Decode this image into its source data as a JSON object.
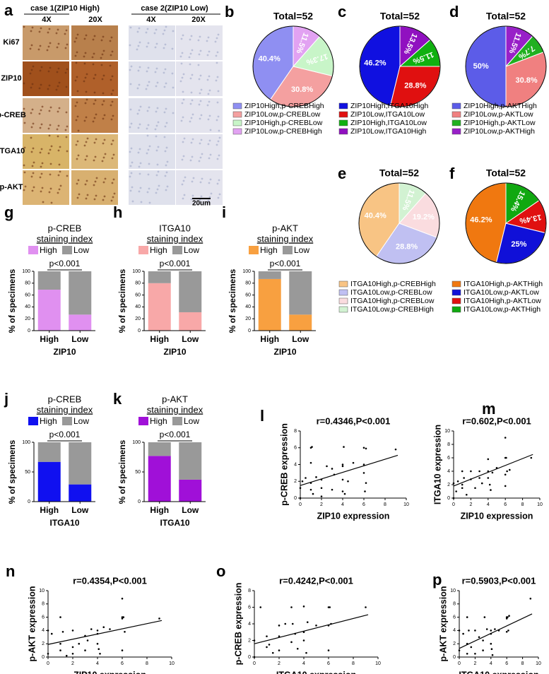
{
  "panel_a": {
    "label": "a",
    "case1": "case 1(ZIP10 High)",
    "case2": "case 2(ZIP10 Low)",
    "magnifications": [
      "4X",
      "20X"
    ],
    "rows": [
      "Ki67",
      "ZIP10",
      "p-CREB",
      "ITGA10",
      "p-AKT"
    ],
    "scale_bar": "20um"
  },
  "chart_data": [
    {
      "type": "pie",
      "label": "b",
      "title": "Total=52",
      "categories": [
        "ZIP10High,p-CREBHigh",
        "ZIP10Low,p-CREBLow",
        "ZIP10High,p-CREBLow",
        "ZIP10Low,p-CREBHigh"
      ],
      "values": [
        40.4,
        30.8,
        17.3,
        11.5
      ],
      "value_labels": [
        "40.4%",
        "30.8%",
        "17.3%",
        "11.5%"
      ],
      "colors": [
        "#8f8ff2",
        "#f4a0a0",
        "#c8f5c8",
        "#e2a2f2"
      ]
    },
    {
      "type": "pie",
      "label": "c",
      "title": "Total=52",
      "categories": [
        "ZIP10High,ITGA10High",
        "ZIP10Low,ITGA10Low",
        "ZIP10High,ITGA10Low",
        "ZIP10Low,ITGA10High"
      ],
      "values": [
        46.2,
        28.8,
        11.5,
        13.5
      ],
      "value_labels": [
        "46.2%",
        "28.8%",
        "11.5%",
        "13.5%"
      ],
      "colors": [
        "#1010e0",
        "#e01010",
        "#10b010",
        "#9010c0"
      ]
    },
    {
      "type": "pie",
      "label": "d",
      "title": "Total=52",
      "categories": [
        "ZIP10High,p-AKTHigh",
        "ZIP10Low,p-AKTLow",
        "ZIP10High,p-AKTLow",
        "ZIP10Low,p-AKTHigh"
      ],
      "values": [
        50,
        30.8,
        7.7,
        11.5
      ],
      "value_labels": [
        "50%",
        "30.8%",
        "7.7%",
        "11.5%"
      ],
      "colors": [
        "#5c5ce8",
        "#f08080",
        "#20b020",
        "#9820c8"
      ]
    },
    {
      "type": "pie",
      "label": "e",
      "title": "Total=52",
      "categories": [
        "ITGA10High,p-CREBHigh",
        "ITGA10Low,p-CREBLow",
        "ITGA10High,p-CREBLow",
        "ITGA10Low,p-CREBHigh"
      ],
      "values": [
        40.4,
        28.8,
        19.2,
        11.5
      ],
      "value_labels": [
        "40.4%",
        "28.8%",
        "19.2%",
        "11.5%"
      ],
      "colors": [
        "#f8c484",
        "#c0c0f2",
        "#fadcdf",
        "#d2f2d2"
      ]
    },
    {
      "type": "pie",
      "label": "f",
      "title": "Total=52",
      "categories": [
        "ITGA10High,p-AKTHigh",
        "ITGA10Low,p-AKTLow",
        "ITGA10High,p-AKTLow",
        "ITGA10Low,p-AKTHigh"
      ],
      "values": [
        46.2,
        25,
        13.4,
        15.4
      ],
      "value_labels": [
        "46.2%",
        "25%",
        "13.4%",
        "15.4%"
      ],
      "colors": [
        "#f07810",
        "#1010d8",
        "#e01010",
        "#10a810"
      ]
    },
    {
      "type": "bar",
      "stacked": true,
      "label": "g",
      "title": "p-CREB",
      "subtitle": "staining index",
      "annotation": "p<0.001",
      "ylabel": "% of specimens",
      "xlabel": "ZIP10",
      "categories": [
        "High",
        "Low"
      ],
      "series": [
        {
          "name": "High",
          "color": "#e090f0",
          "values": [
            69,
            27
          ]
        },
        {
          "name": "Low",
          "color": "#999999",
          "values": [
            31,
            73
          ]
        }
      ],
      "ylim": [
        0,
        100
      ],
      "yticks": [
        0,
        20,
        40,
        60,
        80,
        100
      ]
    },
    {
      "type": "bar",
      "stacked": true,
      "label": "h",
      "title": "ITGA10",
      "subtitle": "staining index",
      "annotation": "p<0.001",
      "ylabel": "% of specimens",
      "xlabel": "ZIP10",
      "categories": [
        "High",
        "Low"
      ],
      "series": [
        {
          "name": "High",
          "color": "#f8a8a8",
          "values": [
            80,
            31
          ]
        },
        {
          "name": "Low",
          "color": "#999999",
          "values": [
            20,
            69
          ]
        }
      ],
      "ylim": [
        0,
        100
      ],
      "yticks": [
        0,
        20,
        40,
        60,
        80,
        100
      ]
    },
    {
      "type": "bar",
      "stacked": true,
      "label": "i",
      "title": "p-AKT",
      "subtitle": "staining index",
      "annotation": "p<0.001",
      "ylabel": "% of specimens",
      "xlabel": "ZIP10",
      "categories": [
        "High",
        "Low"
      ],
      "series": [
        {
          "name": "High",
          "color": "#f8a040",
          "values": [
            87,
            27
          ]
        },
        {
          "name": "Low",
          "color": "#999999",
          "values": [
            13,
            73
          ]
        }
      ],
      "ylim": [
        0,
        100
      ],
      "yticks": [
        0,
        20,
        40,
        60,
        80,
        100
      ]
    },
    {
      "type": "bar",
      "stacked": true,
      "label": "j",
      "title": "p-CREB",
      "subtitle": "staining index",
      "annotation": "p<0.001",
      "ylabel": "% of specimens",
      "xlabel": "ITGA10",
      "categories": [
        "High",
        "Low"
      ],
      "series": [
        {
          "name": "High",
          "color": "#1010f0",
          "values": [
            67,
            29
          ]
        },
        {
          "name": "Low",
          "color": "#999999",
          "values": [
            33,
            71
          ]
        }
      ],
      "ylim": [
        0,
        100
      ],
      "yticks": [
        0,
        50,
        100
      ]
    },
    {
      "type": "bar",
      "stacked": true,
      "label": "k",
      "title": "p-AKT",
      "subtitle": "staining index",
      "annotation": "p<0.001",
      "ylabel": "% of specimens",
      "xlabel": "ITGA10",
      "categories": [
        "High",
        "Low"
      ],
      "series": [
        {
          "name": "High",
          "color": "#a010d8",
          "values": [
            77,
            37
          ]
        },
        {
          "name": "Low",
          "color": "#999999",
          "values": [
            23,
            63
          ]
        }
      ],
      "ylim": [
        0,
        100
      ],
      "yticks": [
        0,
        50,
        100
      ]
    },
    {
      "type": "scatter",
      "label": "l",
      "title": "r=0.4346,P<0.001",
      "xlabel": "ZIP10 expression",
      "ylabel": "p-CREB expression",
      "x": [
        0,
        0,
        0.2,
        0.5,
        1,
        1,
        1.1,
        1,
        1,
        1.2,
        1.5,
        2,
        2,
        2,
        2.5,
        3,
        3,
        3.2,
        4,
        4,
        4.1,
        4,
        4.2,
        4,
        4.5,
        5,
        6,
        6.2,
        6,
        6,
        6.2,
        6.1,
        9
      ],
      "values": [
        0,
        1.2,
        2,
        2.4,
        4.2,
        6,
        6.1,
        1,
        1.8,
        0.5,
        2.5,
        2.2,
        1.2,
        0.2,
        3.8,
        3.5,
        1,
        2.8,
        3.8,
        4,
        6.1,
        0.8,
        0.5,
        2.2,
        2,
        4.2,
        6,
        5.9,
        3,
        4,
        1.8,
        0.8,
        5.8
      ],
      "fit": {
        "x": [
          0,
          9.2
        ],
        "values": [
          1.5,
          5.1
        ]
      },
      "xlim": [
        0,
        10
      ],
      "xticks": [
        0,
        2,
        4,
        6,
        8,
        10
      ],
      "ylim": [
        0,
        8
      ],
      "yticks": [
        0,
        2,
        4,
        6,
        8
      ]
    },
    {
      "type": "scatter",
      "label": "m",
      "title": "r=0.602,P<0.001",
      "xlabel": "ZIP10 expression",
      "ylabel": "ITGA10 expression",
      "x": [
        0,
        0,
        0.3,
        0.5,
        1,
        1,
        1,
        1.2,
        1.5,
        2,
        2,
        2.5,
        3,
        3,
        3.3,
        4,
        4,
        4.2,
        4,
        4.3,
        4.5,
        5,
        6,
        6.1,
        6,
        6,
        6.2,
        6.5,
        6,
        9
      ],
      "values": [
        0,
        2.2,
        1,
        2.5,
        1.5,
        2,
        4,
        3,
        0.5,
        2.8,
        4,
        1.5,
        3,
        4,
        2.2,
        4,
        3,
        2,
        5.8,
        1.2,
        3.8,
        4.5,
        6,
        6,
        9,
        3.5,
        4,
        4.2,
        1.8,
        6
      ],
      "fit": {
        "x": [
          0,
          9.2
        ],
        "values": [
          1.8,
          6.5
        ]
      },
      "xlim": [
        0,
        10
      ],
      "xticks": [
        0,
        2,
        4,
        6,
        8,
        10
      ],
      "ylim": [
        0,
        10
      ],
      "yticks": [
        0,
        2,
        4,
        6,
        8,
        10
      ]
    },
    {
      "type": "scatter",
      "label": "n",
      "title": "r=0.4354,P<0.001",
      "xlabel": "ZIP10 expression",
      "ylabel": "p-AKT expression",
      "x": [
        0,
        0,
        0.3,
        1,
        1,
        1,
        1.2,
        1.5,
        2,
        2,
        2,
        2.5,
        3,
        3,
        3.2,
        3.5,
        4,
        4,
        4.1,
        4.2,
        4,
        4.5,
        5,
        6,
        6,
        6.1,
        6,
        6.2,
        6,
        9
      ],
      "values": [
        4,
        0.5,
        3.5,
        6,
        2,
        1,
        3.8,
        0.2,
        1.5,
        0.5,
        4,
        2,
        1,
        3.2,
        2.5,
        4.2,
        4,
        3.5,
        1.2,
        0.5,
        2,
        4.5,
        4.2,
        6,
        5.8,
        6,
        8.8,
        3.8,
        1,
        5.8
      ],
      "fit": {
        "x": [
          0,
          9.2
        ],
        "values": [
          1.9,
          5.5
        ]
      },
      "xlim": [
        0,
        10
      ],
      "xticks": [
        0,
        2,
        4,
        6,
        8,
        10
      ],
      "ylim": [
        0,
        10
      ],
      "yticks": [
        0,
        2,
        4,
        6,
        8,
        10
      ]
    },
    {
      "type": "scatter",
      "label": "o",
      "title": "r=0.4242,P<0.001",
      "xlabel": "ITGA10 expression",
      "ylabel": "p-CREB expression",
      "x": [
        0,
        0,
        0.5,
        1,
        1,
        1.2,
        1.5,
        2,
        2,
        2,
        2.5,
        3,
        3,
        3.1,
        3.3,
        3.5,
        4,
        4,
        4,
        4.2,
        4.3,
        5,
        6,
        6,
        6.1,
        6,
        6.2,
        9
      ],
      "values": [
        0,
        2,
        6,
        1.2,
        2.5,
        1.5,
        0.5,
        2.5,
        3.8,
        0.8,
        4,
        1.8,
        6,
        4,
        2.8,
        1,
        6.1,
        3,
        2,
        0.5,
        4.2,
        3.8,
        6,
        3.8,
        6,
        0.8,
        4,
        6
      ],
      "fit": {
        "x": [
          0,
          9.2
        ],
        "values": [
          1.6,
          5.1
        ]
      },
      "xlim": [
        0,
        10
      ],
      "xticks": [
        0,
        2,
        4,
        6,
        8,
        10
      ],
      "ylim": [
        0,
        8
      ],
      "yticks": [
        0,
        2,
        4,
        6,
        8
      ]
    },
    {
      "type": "scatter",
      "label": "p",
      "title": "r=0.5903,P<0.001",
      "xlabel": "ITGA10 expression",
      "ylabel": "p-AKT expression",
      "x": [
        0,
        0,
        0.5,
        1,
        1,
        1,
        1.2,
        1.5,
        2,
        2,
        2.5,
        3,
        3,
        3.2,
        3.5,
        4,
        4,
        4.1,
        4.2,
        4,
        4.5,
        5,
        6,
        6,
        6.1,
        6.2,
        6,
        6.3,
        9
      ],
      "values": [
        4,
        1,
        3.5,
        6,
        2,
        0.5,
        4,
        1.5,
        4,
        0.5,
        3,
        2.5,
        1,
        6,
        4.2,
        4,
        3.5,
        1.2,
        0.3,
        2,
        4.2,
        4,
        6,
        5.8,
        6,
        4,
        3.8,
        6.2,
        8.8
      ],
      "fit": {
        "x": [
          0,
          9.2
        ],
        "values": [
          1.3,
          6.5
        ]
      },
      "xlim": [
        0,
        10
      ],
      "xticks": [
        0,
        2,
        4,
        6,
        8,
        10
      ],
      "ylim": [
        0,
        10
      ],
      "yticks": [
        0,
        2,
        4,
        6,
        8,
        10
      ]
    }
  ]
}
